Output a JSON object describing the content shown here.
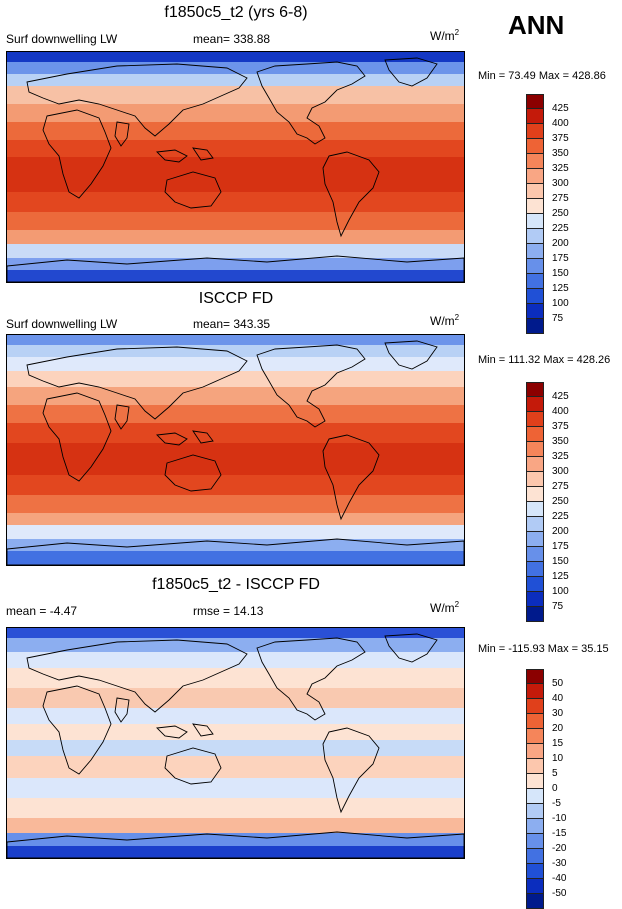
{
  "season": "ANN",
  "units_base": "W/m",
  "units_exp": "2",
  "panels": [
    {
      "title": "f1850c5_t2 (yrs 6-8)",
      "left_label": "Surf downwelling LW",
      "center_label": "mean= 338.88",
      "minmax": "Min =  73.49 Max = 428.86"
    },
    {
      "title": "ISCCP FD",
      "left_label": "Surf downwelling LW",
      "center_label": "mean= 343.35",
      "minmax": "Min = 111.32 Max = 428.26"
    },
    {
      "title": "f1850c5_t2 - ISCCP FD",
      "left_label": "mean =  -4.47",
      "center_label": "rmse =  14.13",
      "minmax": "Min = -115.93 Max =  35.15"
    }
  ],
  "chart_data": [
    {
      "type": "heatmap",
      "title": "f1850c5_t2 (yrs 6-8)",
      "variable": "Surf downwelling LW",
      "mean": 338.88,
      "min": 73.49,
      "max": 428.86,
      "units": "W/m2",
      "colorbar_levels": [
        "425",
        "400",
        "375",
        "350",
        "325",
        "300",
        "275",
        "250",
        "225",
        "200",
        "175",
        "150",
        "125",
        "100",
        "75"
      ],
      "colorbar_colors": [
        "#8b0000",
        "#c41a0a",
        "#e0401b",
        "#ee6335",
        "#f5855a",
        "#f9a684",
        "#fcc7ad",
        "#fde3d3",
        "#d6e6fa",
        "#b1cbf5",
        "#8caef0",
        "#6790ea",
        "#4271e2",
        "#2050d6",
        "#0b2dbe",
        "#001a8c"
      ]
    },
    {
      "type": "heatmap",
      "title": "ISCCP FD",
      "variable": "Surf downwelling LW",
      "mean": 343.35,
      "min": 111.32,
      "max": 428.26,
      "units": "W/m2",
      "colorbar_levels": [
        "425",
        "400",
        "375",
        "350",
        "325",
        "300",
        "275",
        "250",
        "225",
        "200",
        "175",
        "150",
        "125",
        "100",
        "75"
      ],
      "colorbar_colors": [
        "#8b0000",
        "#c41a0a",
        "#e0401b",
        "#ee6335",
        "#f5855a",
        "#f9a684",
        "#fcc7ad",
        "#fde3d3",
        "#d6e6fa",
        "#b1cbf5",
        "#8caef0",
        "#6790ea",
        "#4271e2",
        "#2050d6",
        "#0b2dbe",
        "#001a8c"
      ]
    },
    {
      "type": "heatmap",
      "title": "f1850c5_t2 - ISCCP FD",
      "mean": -4.47,
      "rmse": 14.13,
      "min": -115.93,
      "max": 35.15,
      "units": "W/m2",
      "colorbar_levels": [
        "50",
        "40",
        "30",
        "20",
        "15",
        "10",
        "5",
        "0",
        "-5",
        "-10",
        "-15",
        "-20",
        "-30",
        "-40",
        "-50"
      ],
      "colorbar_colors": [
        "#8b0000",
        "#c41a0a",
        "#e0401b",
        "#ee6335",
        "#f5855a",
        "#f9a684",
        "#fcc7ad",
        "#fde3d3",
        "#d6e6fa",
        "#b1cbf5",
        "#8caef0",
        "#6790ea",
        "#4271e2",
        "#2050d6",
        "#0b2dbe",
        "#001a8c"
      ]
    }
  ]
}
